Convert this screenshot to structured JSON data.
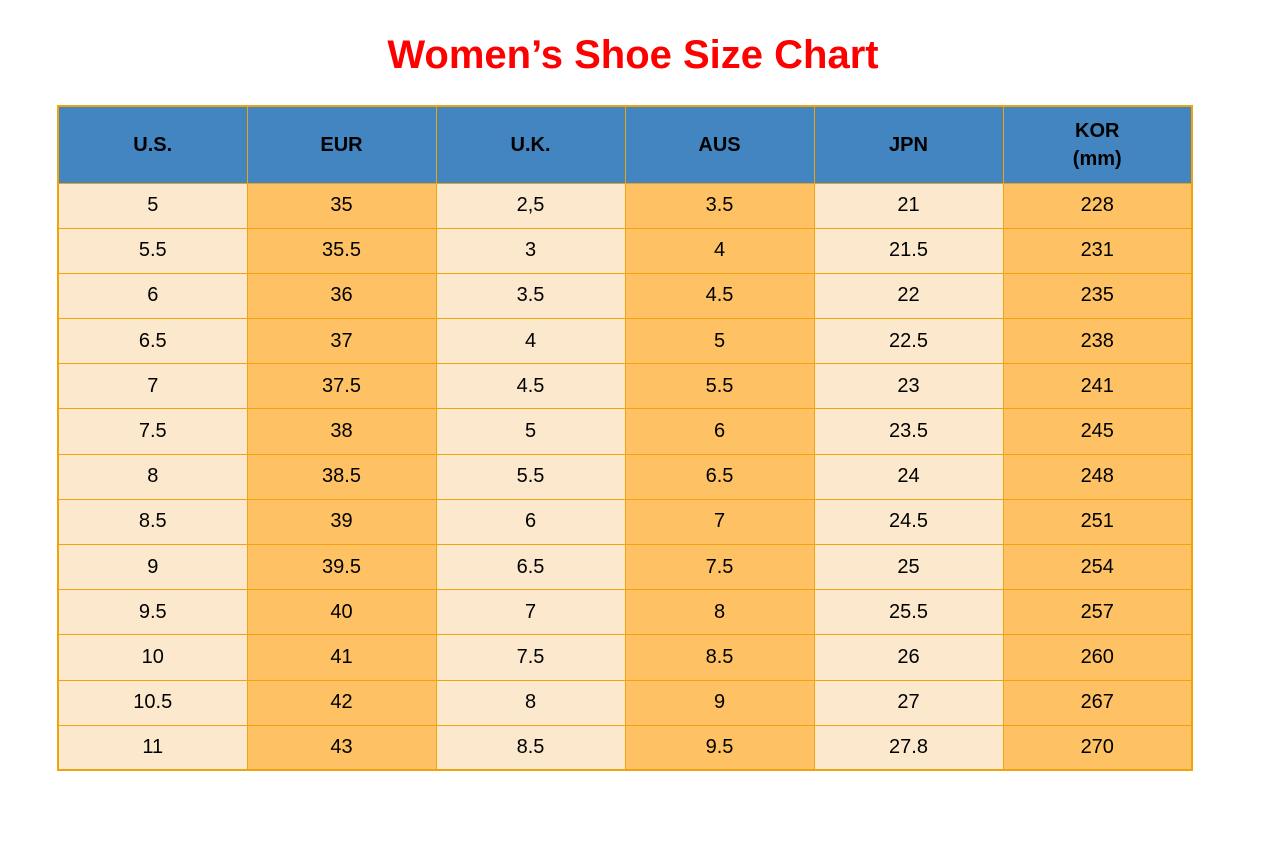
{
  "title": "Women’s Shoe Size Chart",
  "colors": {
    "page_bg": "#FFFFFF",
    "title": "#FF0000",
    "header_bg": "#4385C1",
    "header_text": "#000000",
    "cell_text": "#000000",
    "border": "#F0A30C",
    "column_light": "#FCE9CD",
    "column_orange": "#FEC164"
  },
  "table": {
    "columns": [
      {
        "key": "us",
        "label": "U.S.",
        "shade": "light"
      },
      {
        "key": "eur",
        "label": "EUR",
        "shade": "orange"
      },
      {
        "key": "uk",
        "label": "U.K.",
        "shade": "light"
      },
      {
        "key": "aus",
        "label": "AUS",
        "shade": "orange"
      },
      {
        "key": "jpn",
        "label": "JPN",
        "shade": "light"
      },
      {
        "key": "kor",
        "label": "KOR\n(mm)",
        "shade": "orange"
      }
    ],
    "rows": [
      [
        "5",
        "35",
        "2,5",
        "3.5",
        "21",
        "228"
      ],
      [
        "5.5",
        "35.5",
        "3",
        "4",
        "21.5",
        "231"
      ],
      [
        "6",
        "36",
        "3.5",
        "4.5",
        "22",
        "235"
      ],
      [
        "6.5",
        "37",
        "4",
        "5",
        "22.5",
        "238"
      ],
      [
        "7",
        "37.5",
        "4.5",
        "5.5",
        "23",
        "241"
      ],
      [
        "7.5",
        "38",
        "5",
        "6",
        "23.5",
        "245"
      ],
      [
        "8",
        "38.5",
        "5.5",
        "6.5",
        "24",
        "248"
      ],
      [
        "8.5",
        "39",
        "6",
        "7",
        "24.5",
        "251"
      ],
      [
        "9",
        "39.5",
        "6.5",
        "7.5",
        "25",
        "254"
      ],
      [
        "9.5",
        "40",
        "7",
        "8",
        "25.5",
        "257"
      ],
      [
        "10",
        "41",
        "7.5",
        "8.5",
        "26",
        "260"
      ],
      [
        "10.5",
        "42",
        "8",
        "9",
        "27",
        "267"
      ],
      [
        "11",
        "43",
        "8.5",
        "9.5",
        "27.8",
        "270"
      ]
    ]
  },
  "chart_data": {
    "type": "table",
    "title": "Women’s Shoe Size Chart",
    "columns": [
      "U.S.",
      "EUR",
      "U.K.",
      "AUS",
      "JPN",
      "KOR (mm)"
    ],
    "rows": [
      [
        "5",
        "35",
        "2,5",
        "3.5",
        "21",
        "228"
      ],
      [
        "5.5",
        "35.5",
        "3",
        "4",
        "21.5",
        "231"
      ],
      [
        "6",
        "36",
        "3.5",
        "4.5",
        "22",
        "235"
      ],
      [
        "6.5",
        "37",
        "4",
        "5",
        "22.5",
        "238"
      ],
      [
        "7",
        "37.5",
        "4.5",
        "5.5",
        "23",
        "241"
      ],
      [
        "7.5",
        "38",
        "5",
        "6",
        "23.5",
        "245"
      ],
      [
        "8",
        "38.5",
        "5.5",
        "6.5",
        "24",
        "248"
      ],
      [
        "8.5",
        "39",
        "6",
        "7",
        "24.5",
        "251"
      ],
      [
        "9",
        "39.5",
        "6.5",
        "7.5",
        "25",
        "254"
      ],
      [
        "9.5",
        "40",
        "7",
        "8",
        "25.5",
        "257"
      ],
      [
        "10",
        "41",
        "7.5",
        "8.5",
        "26",
        "260"
      ],
      [
        "10.5",
        "42",
        "8",
        "9",
        "27",
        "267"
      ],
      [
        "11",
        "43",
        "8.5",
        "9.5",
        "27.8",
        "270"
      ]
    ]
  }
}
